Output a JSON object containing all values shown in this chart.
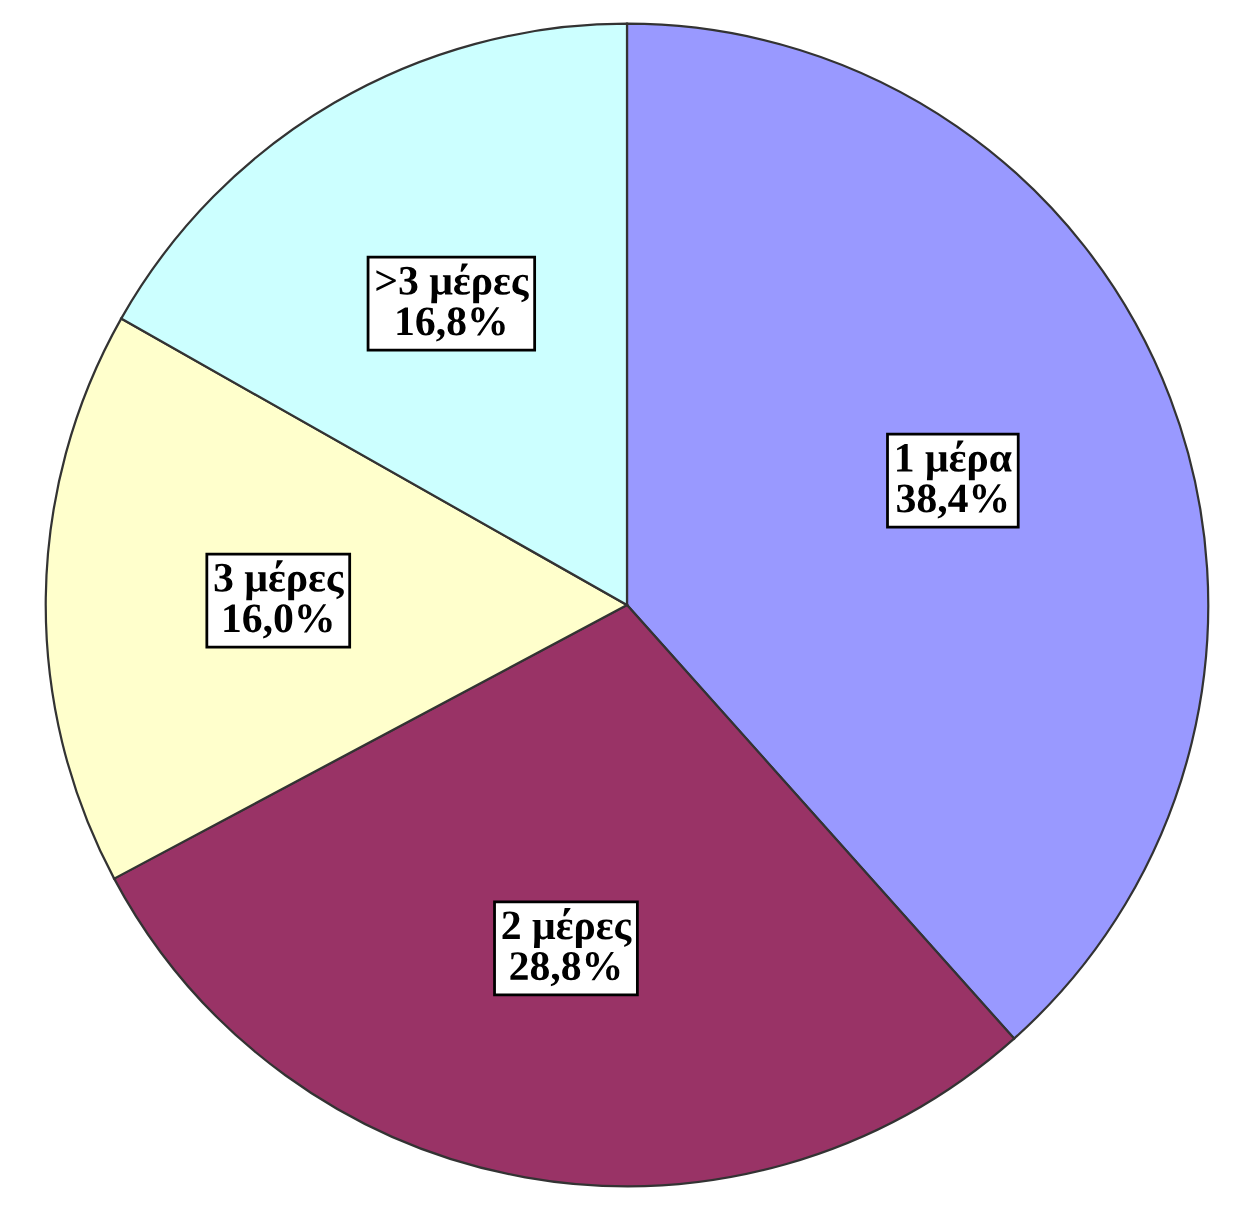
{
  "chart_data": {
    "type": "pie",
    "categories": [
      "1 μέρα",
      "2 μέρες",
      "3 μέρες",
      ">3 μέρες"
    ],
    "values": [
      38.4,
      28.8,
      16.0,
      16.8
    ],
    "value_labels": [
      "38,4%",
      "28,8%",
      "16,0%",
      "16,8%"
    ],
    "colors": [
      "#9999ff",
      "#993366",
      "#ffffcc",
      "#ccffff"
    ],
    "legend": false
  }
}
